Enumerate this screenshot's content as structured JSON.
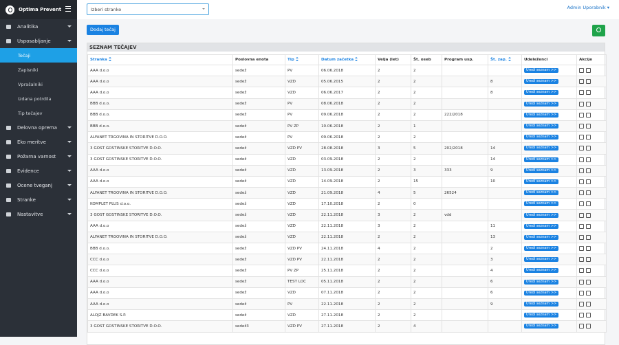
{
  "brand": "Optima Prevent",
  "menu": [
    {
      "label": "Analitika",
      "caret": true
    },
    {
      "label": "Usposabljanje",
      "caret": true,
      "children": [
        {
          "label": "Tečaji",
          "active": true
        },
        {
          "label": "Zapisniki"
        },
        {
          "label": "Vprašalniki"
        },
        {
          "label": "Izdana potrdila"
        },
        {
          "label": "Tip tečajev"
        }
      ]
    },
    {
      "label": "Delovna oprema",
      "caret": true
    },
    {
      "label": "Eko meritve",
      "caret": true
    },
    {
      "label": "Požarna varnost",
      "caret": true
    },
    {
      "label": "Evidence",
      "caret": true
    },
    {
      "label": "Ocene tveganj",
      "caret": true
    },
    {
      "label": "Stranke",
      "caret": true
    },
    {
      "label": "Nastavitve",
      "caret": true
    }
  ],
  "header": {
    "select_placeholder": "Izberi stranko",
    "user": "Admin Uporabnik"
  },
  "add_button": "Dodaj tečaj",
  "section_title": "SEZNAM TEČAJEV",
  "table": {
    "columns": [
      {
        "label": "Stranka",
        "sortable": true
      },
      {
        "label": "Poslovna enota"
      },
      {
        "label": "Tip",
        "sortable": true
      },
      {
        "label": "Datum začetka",
        "sortable": true
      },
      {
        "label": "Velja (let)"
      },
      {
        "label": "Št. oseb"
      },
      {
        "label": "Program usp."
      },
      {
        "label": "Št. zap.",
        "sortable": true
      },
      {
        "label": "Udeleženci"
      },
      {
        "label": "Akcije"
      }
    ],
    "row_button": "Uredi seznam >>",
    "rows": [
      [
        "AAA d.o.o",
        "sedež",
        "PV",
        "06.06.2018",
        2,
        2,
        null,
        null
      ],
      [
        "AAA d.o.o",
        "sedež",
        "VZD",
        "05.06.2015",
        2,
        2,
        null,
        8
      ],
      [
        "AAA d.o.o",
        "sedež",
        "VZD",
        "06.06.2017",
        2,
        2,
        null,
        8
      ],
      [
        "BBB d.o.o.",
        "sedež",
        "PV",
        "08.06.2018",
        2,
        2,
        null,
        null
      ],
      [
        "BBB d.o.o.",
        "sedež",
        "PV",
        "09.06.2018",
        2,
        2,
        "222/2018",
        null
      ],
      [
        "BBB d.o.o.",
        "sedež",
        "PV ZP",
        "10.06.2018",
        2,
        1,
        null,
        null
      ],
      [
        "ALFANET TRGOVINA IN STORITVE D.O.O.",
        "sedež",
        "PV",
        "09.06.2018",
        2,
        2,
        null,
        null
      ],
      [
        "3 GOST GOSTINSKE STORITVE D.O.O.",
        "sedež",
        "VZD PV",
        "28.08.2018",
        3,
        5,
        "202/2018",
        14
      ],
      [
        "3 GOST GOSTINSKE STORITVE D.O.O.",
        "sedež",
        "VZD",
        "03.09.2018",
        2,
        2,
        null,
        14
      ],
      [
        "AAA d.o.o",
        "sedež",
        "VZD",
        "13.09.2018",
        2,
        3,
        "333",
        9
      ],
      [
        "AAA d.o.o",
        "sedež",
        "VZD",
        "14.09.2018",
        2,
        15,
        null,
        10
      ],
      [
        "ALFANET TRGOVINA IN STORITVE D.O.O.",
        "sedež",
        "VZD",
        "21.09.2018",
        4,
        5,
        "26524",
        null
      ],
      [
        "KOMPLET PLUS d.o.o.",
        "sedež",
        "VZD",
        "17.10.2018",
        2,
        0,
        null,
        null
      ],
      [
        "3 GOST GOSTINSKE STORITVE D.O.O.",
        "sedež",
        "VZD",
        "22.11.2018",
        3,
        2,
        "vdd",
        null
      ],
      [
        "AAA d.o.o",
        "sedež",
        "VZD",
        "22.11.2018",
        3,
        2,
        null,
        11
      ],
      [
        "ALFANET TRGOVINA IN STORITVE D.O.O.",
        "sedež",
        "VZD",
        "22.11.2018",
        2,
        2,
        null,
        13
      ],
      [
        "BBB d.o.o.",
        "sedež",
        "VZD PV",
        "24.11.2018",
        4,
        2,
        null,
        2
      ],
      [
        "CCC d.o.o",
        "sedež",
        "VZD PV",
        "22.11.2018",
        2,
        2,
        null,
        3
      ],
      [
        "CCC d.o.o",
        "sedež",
        "PV ZP",
        "25.11.2018",
        2,
        2,
        null,
        4
      ],
      [
        "AAA d.o.o",
        "sedež",
        "TEST LOC",
        "05.11.2018",
        2,
        2,
        null,
        6
      ],
      [
        "AAA d.o.o",
        "sedež",
        "VZD",
        "07.11.2018",
        2,
        2,
        null,
        6
      ],
      [
        "AAA d.o.o",
        "sedež",
        "PV",
        "22.11.2018",
        2,
        2,
        null,
        9
      ],
      [
        "ALOJZ BAVDEK S.P.",
        "sedež",
        "VZD",
        "27.11.2018",
        2,
        2,
        null,
        null
      ],
      [
        "3 GOST GOSTINSKE STORITVE D.O.O.",
        "sedež3",
        "VZD PV",
        "27.11.2018",
        2,
        4,
        null,
        null
      ]
    ]
  }
}
